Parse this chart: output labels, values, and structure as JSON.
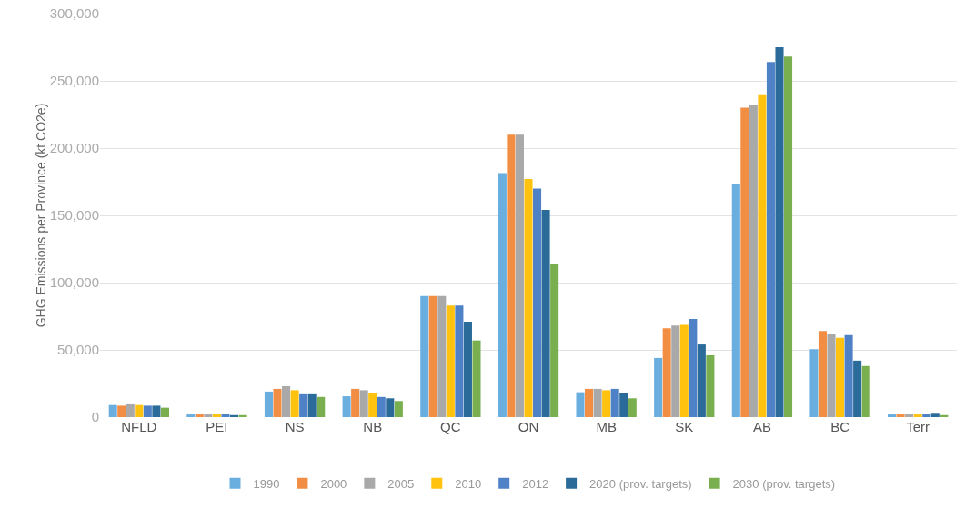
{
  "chart_data": {
    "type": "bar",
    "ylabel": "GHG Emissions per Province (kt CO2e)",
    "categories": [
      "NFLD",
      "PEI",
      "NS",
      "NB",
      "QC",
      "ON",
      "MB",
      "SK",
      "AB",
      "BC",
      "Terr"
    ],
    "series": [
      {
        "name": "1990",
        "color": "#6aaee0",
        "values": [
          9000,
          2000,
          19000,
          15500,
          90000,
          181500,
          18500,
          44000,
          173000,
          50500,
          2000
        ]
      },
      {
        "name": "2000",
        "color": "#f28e43",
        "values": [
          8500,
          2000,
          21000,
          21000,
          90000,
          210000,
          21000,
          66000,
          230000,
          64000,
          2000
        ]
      },
      {
        "name": "2005",
        "color": "#a9a9a9",
        "values": [
          9500,
          2000,
          23000,
          20000,
          90000,
          210000,
          21000,
          68000,
          232000,
          62000,
          2000
        ]
      },
      {
        "name": "2010",
        "color": "#ffc20e",
        "values": [
          9000,
          2000,
          20000,
          18000,
          83000,
          177000,
          20000,
          68500,
          240000,
          59000,
          2000
        ]
      },
      {
        "name": "2012",
        "color": "#4f81c7",
        "values": [
          8500,
          2000,
          17000,
          15000,
          83000,
          170000,
          21000,
          73000,
          264000,
          61000,
          2000
        ]
      },
      {
        "name": "2020 (prov. targets)",
        "color": "#2a6b99",
        "values": [
          8500,
          1500,
          17000,
          14000,
          71000,
          154000,
          18000,
          54000,
          275000,
          42000,
          2500
        ]
      },
      {
        "name": "2030 (prov. targets)",
        "color": "#7aaf50",
        "values": [
          7000,
          1500,
          15000,
          12000,
          57000,
          114000,
          14000,
          46000,
          268000,
          38000,
          1500
        ]
      }
    ],
    "ylim": [
      0,
      300000
    ],
    "yticks": [
      {
        "value": 0,
        "label": "0"
      },
      {
        "value": 50000,
        "label": "50,000"
      },
      {
        "value": 100000,
        "label": "100,000"
      },
      {
        "value": 150000,
        "label": "150,000"
      },
      {
        "value": 200000,
        "label": "200,000"
      },
      {
        "value": 250000,
        "label": "250,000"
      },
      {
        "value": 300000,
        "label": "300,000"
      }
    ],
    "grid": "y",
    "legend": "bottom"
  }
}
